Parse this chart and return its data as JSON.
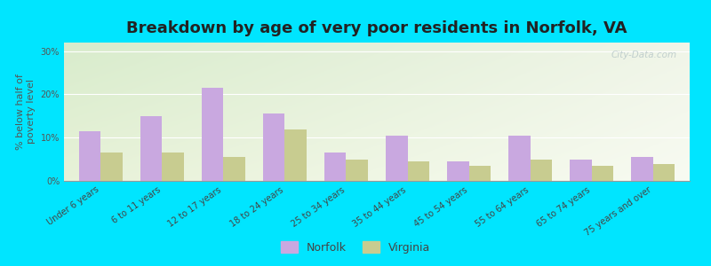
{
  "title": "Breakdown by age of very poor residents in Norfolk, VA",
  "ylabel": "% below half of\npoverty level",
  "categories": [
    "Under 6 years",
    "6 to 11 years",
    "12 to 17 years",
    "18 to 24 years",
    "25 to 34 years",
    "35 to 44 years",
    "45 to 54 years",
    "55 to 64 years",
    "65 to 74 years",
    "75 years and over"
  ],
  "norfolk_values": [
    11.5,
    15.0,
    21.5,
    15.5,
    6.5,
    10.5,
    4.5,
    10.5,
    5.0,
    5.5
  ],
  "virginia_values": [
    6.5,
    6.5,
    5.5,
    12.0,
    5.0,
    4.5,
    3.5,
    5.0,
    3.5,
    4.0
  ],
  "norfolk_color": "#c9a8e0",
  "virginia_color": "#c8cc90",
  "background_outer": "#00e5ff",
  "gradient_top_left": "#d8eccc",
  "gradient_top_right": "#f0f5e8",
  "gradient_bottom_left": "#e8f2d8",
  "gradient_bottom_right": "#f8fbf2",
  "ylim": [
    0,
    32
  ],
  "yticks": [
    0,
    10,
    20,
    30
  ],
  "ytick_labels": [
    "0%",
    "10%",
    "20%",
    "30%"
  ],
  "bar_width": 0.35,
  "title_fontsize": 13,
  "axis_label_fontsize": 8,
  "tick_label_fontsize": 7,
  "legend_fontsize": 9,
  "watermark_text": "City-Data.com",
  "watermark_color": "#b8c8c8"
}
